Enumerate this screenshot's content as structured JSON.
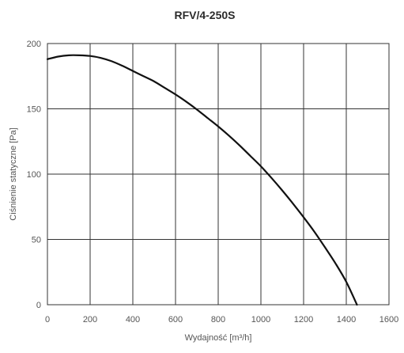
{
  "chart_data": {
    "type": "line",
    "title": "RFV/4-250S",
    "xlabel": "Wydajność [m³/h]",
    "ylabel": "Ciśnienie statyczne [Pa]",
    "xlim": [
      0,
      1600
    ],
    "ylim": [
      0,
      200
    ],
    "xticks": [
      0,
      200,
      400,
      600,
      800,
      1000,
      1200,
      1400,
      1600
    ],
    "yticks": [
      0,
      50,
      100,
      150,
      200
    ],
    "xtick_labels": [
      "0",
      "200",
      "400",
      "600",
      "800",
      "1000",
      "1200",
      "1400",
      "1600"
    ],
    "ytick_labels": [
      "0",
      "50",
      "100",
      "150",
      "200"
    ],
    "grid": true,
    "series": [
      {
        "color": "#111111",
        "x": [
          0,
          50,
          100,
          150,
          200,
          250,
          300,
          350,
          400,
          450,
          500,
          550,
          600,
          650,
          700,
          750,
          800,
          850,
          900,
          950,
          1000,
          1050,
          1100,
          1150,
          1200,
          1250,
          1300,
          1350,
          1400,
          1450
        ],
        "y": [
          188,
          190,
          191,
          191,
          190.5,
          189,
          186.5,
          183,
          179,
          175,
          171,
          166,
          161,
          155.5,
          149.5,
          143,
          136.5,
          129.5,
          122,
          114,
          106,
          97,
          87.5,
          77.5,
          67,
          56,
          44,
          31.5,
          17.5,
          0
        ]
      }
    ],
    "colors": {
      "background": "#ffffff",
      "plot_border": "#333333",
      "grid": "#333333",
      "line": "#111111",
      "text": "#555555",
      "title": "#2b2b2b"
    }
  }
}
